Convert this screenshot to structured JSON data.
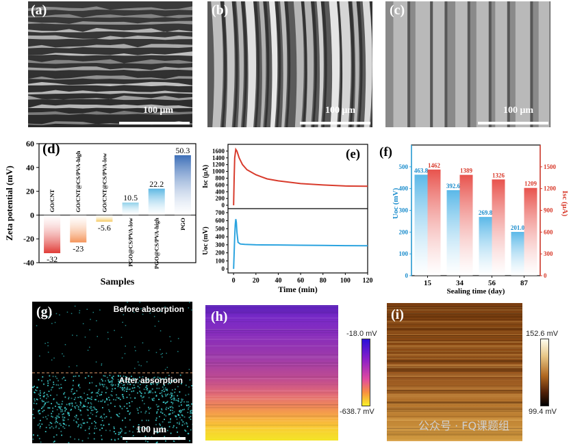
{
  "panels": {
    "a": {
      "tag": "(a)",
      "scale": "100 μm"
    },
    "b": {
      "tag": "(b)",
      "scale": "100 μm"
    },
    "c": {
      "tag": "(c)",
      "scale": "100 μm"
    },
    "g": {
      "tag": "(g)",
      "scale": "100 μm",
      "top_label": "Before absorption",
      "bottom_label": "After absorption"
    },
    "h": {
      "tag": "(h)",
      "cb_max": "-18.0 mV",
      "cb_min": "-638.7 mV"
    },
    "i": {
      "tag": "(i)",
      "cb_max": "152.6 mV",
      "cb_min": "99.4 mV"
    }
  },
  "watermark": "公众号 · FQ课题组",
  "chart_data": [
    {
      "id": "d",
      "type": "bar",
      "tag": "(d)",
      "categories": [
        "GO/CNT",
        "GO/CNT@CS/PVA-high",
        "GO/CNT@CS/PVA-low",
        "PGO@CS/PVA-low",
        "PGO@CS/PVA-high",
        "PGO"
      ],
      "values": [
        -32,
        -23,
        -5.6,
        10.5,
        22.2,
        50.3
      ],
      "value_labels": [
        "-32",
        "-23",
        "-5.6",
        "10.5",
        "22.2",
        "50.3"
      ],
      "colors": [
        "#e03a35",
        "#f4945a",
        "#f5c95f",
        "#8fd0ea",
        "#5db7e3",
        "#3d6fb8"
      ],
      "xlabel": "Samples",
      "ylabel": "Zeta potential (mV)",
      "ylim": [
        -40,
        60
      ],
      "yticks": [
        -40,
        -20,
        0,
        20,
        40,
        60
      ]
    },
    {
      "id": "e",
      "type": "line",
      "tag": "(e)",
      "xlabel": "Time (min)",
      "xlim": [
        -5,
        120
      ],
      "xticks": [
        0,
        20,
        40,
        60,
        80,
        100,
        120
      ],
      "panels": [
        {
          "ylabel": "Isc (μA)",
          "ylim": [
            -100,
            1800
          ],
          "yticks": [
            0,
            200,
            400,
            600,
            800,
            1000,
            1200,
            1400,
            1600
          ],
          "color": "#d83a2b",
          "x": [
            0,
            0.5,
            1,
            2,
            3,
            5,
            8,
            12,
            20,
            30,
            40,
            60,
            80,
            100,
            120
          ],
          "y": [
            0,
            800,
            1400,
            1650,
            1600,
            1400,
            1200,
            1050,
            900,
            780,
            720,
            640,
            600,
            570,
            560
          ]
        },
        {
          "ylabel": "Uoc (mV)",
          "ylim": [
            -50,
            750
          ],
          "yticks": [
            0,
            100,
            200,
            300,
            400,
            500,
            600,
            700
          ],
          "color": "#2aa3df",
          "x": [
            0,
            0.5,
            1,
            1.5,
            2,
            2.5,
            3,
            4,
            6,
            10,
            20,
            40,
            60,
            80,
            100,
            120
          ],
          "y": [
            0,
            200,
            400,
            550,
            620,
            580,
            450,
            330,
            310,
            305,
            300,
            298,
            295,
            292,
            290,
            288
          ]
        }
      ]
    },
    {
      "id": "f",
      "type": "bar",
      "tag": "(f)",
      "categories": [
        "15",
        "34",
        "56",
        "87"
      ],
      "xlabel": "Sealing time (day)",
      "series": [
        {
          "name": "Uoc (mV)",
          "axis": "left",
          "color": "#5ab8e8",
          "values": [
            463.8,
            392.6,
            269.8,
            201.0
          ],
          "labels": [
            "463.8",
            "392.6",
            "269.8",
            "201.0"
          ]
        },
        {
          "name": "Isc (μA)",
          "axis": "right",
          "color": "#e8534d",
          "values": [
            1462,
            1389,
            1326,
            1209
          ],
          "labels": [
            "1462",
            "1389",
            "1326",
            "1209"
          ]
        }
      ],
      "ylabel_left": "Uoc (mV)",
      "ylabel_right": "Isc (μA)",
      "ylim_left": [
        0,
        600
      ],
      "yticks_left": [
        0,
        100,
        200,
        300,
        400,
        500
      ],
      "ylim_right": [
        0,
        1800
      ],
      "yticks_right": [
        0,
        300,
        600,
        900,
        1200,
        1500
      ]
    }
  ]
}
